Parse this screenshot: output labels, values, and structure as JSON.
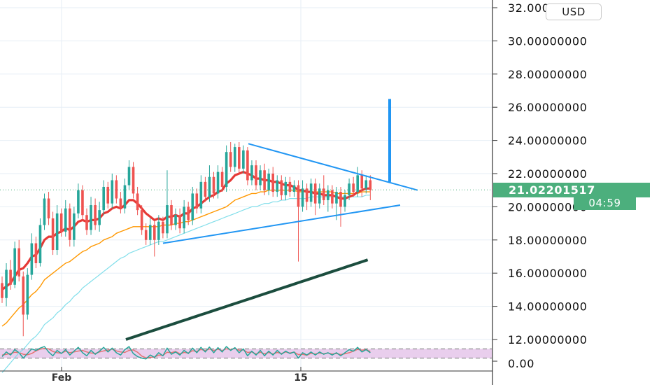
{
  "chart_data": {
    "type": "candlestick",
    "currency": "USD",
    "y_ticks": [
      "32.00000000",
      "30.00000000",
      "28.00000000",
      "26.00000000",
      "24.00000000",
      "22.00000000",
      "20.00000000",
      "18.00000000",
      "16.00000000",
      "14.00000000",
      "12.00000000"
    ],
    "x_ticks": [
      "Feb",
      "15"
    ],
    "ylim": [
      11,
      33
    ],
    "last_price": "21.02201517",
    "countdown": "04:59",
    "indicator": {
      "name": "stochastic",
      "label": "0.00",
      "band": [
        20,
        80
      ]
    },
    "colors": {
      "up": "#26a69a",
      "down": "#ef5350",
      "ema_fast": "#e53935",
      "ema_mid": "#ff9800",
      "ema_slow": "#80deea",
      "ema_long": "#1b4d3e",
      "trendline": "#2196f3",
      "last_price": "#4caf7d",
      "stoch_band": "#e1bee7"
    },
    "candles": [
      [
        15.4,
        14.5,
        15.8,
        14.2
      ],
      [
        14.5,
        16.2,
        16.6,
        14.0
      ],
      [
        16.2,
        15.3,
        16.8,
        15.0
      ],
      [
        15.3,
        17.5,
        17.9,
        15.1
      ],
      [
        17.5,
        15.8,
        18.0,
        15.5
      ],
      [
        15.8,
        13.5,
        16.1,
        12.2
      ],
      [
        13.5,
        15.9,
        16.3,
        13.2
      ],
      [
        15.9,
        17.8,
        18.4,
        15.6
      ],
      [
        17.8,
        16.6,
        18.2,
        16.3
      ],
      [
        16.6,
        18.9,
        19.3,
        16.4
      ],
      [
        18.9,
        20.5,
        20.8,
        18.6
      ],
      [
        20.5,
        19.3,
        20.9,
        18.9
      ],
      [
        19.3,
        17.4,
        19.7,
        17.1
      ],
      [
        17.4,
        19.6,
        20.1,
        17.1
      ],
      [
        19.6,
        18.5,
        19.9,
        18.2
      ],
      [
        18.5,
        19.9,
        20.4,
        18.2
      ],
      [
        19.9,
        18.0,
        20.2,
        17.6
      ],
      [
        18.0,
        19.6,
        20.0,
        17.6
      ],
      [
        19.6,
        21.0,
        21.4,
        19.3
      ],
      [
        21.0,
        19.5,
        21.3,
        19.2
      ],
      [
        19.5,
        18.6,
        19.9,
        18.3
      ],
      [
        18.6,
        20.1,
        20.6,
        18.3
      ],
      [
        20.1,
        18.9,
        20.5,
        18.6
      ],
      [
        18.9,
        19.8,
        20.3,
        18.5
      ],
      [
        19.8,
        21.2,
        21.6,
        19.5
      ],
      [
        21.2,
        20.2,
        21.5,
        19.9
      ],
      [
        20.2,
        21.6,
        22.0,
        19.9
      ],
      [
        21.6,
        20.5,
        21.9,
        20.2
      ],
      [
        20.5,
        19.9,
        20.9,
        19.6
      ],
      [
        19.9,
        21.3,
        21.7,
        19.6
      ],
      [
        21.3,
        22.4,
        22.8,
        21.0
      ],
      [
        22.4,
        20.8,
        22.7,
        20.5
      ],
      [
        20.8,
        19.8,
        21.2,
        19.5
      ],
      [
        19.8,
        18.6,
        20.1,
        18.3
      ],
      [
        18.6,
        18.0,
        19.0,
        17.7
      ],
      [
        18.0,
        18.9,
        19.3,
        17.7
      ],
      [
        18.9,
        18.0,
        19.2,
        17.0
      ],
      [
        18.0,
        19.1,
        19.5,
        17.7
      ],
      [
        19.1,
        18.4,
        19.4,
        18.1
      ],
      [
        18.4,
        20.1,
        22.2,
        18.1
      ],
      [
        20.1,
        18.9,
        20.4,
        18.6
      ],
      [
        18.9,
        19.5,
        19.9,
        18.6
      ],
      [
        19.5,
        18.7,
        19.9,
        18.4
      ],
      [
        18.7,
        20.0,
        20.4,
        18.4
      ],
      [
        20.0,
        19.2,
        20.3,
        18.9
      ],
      [
        19.2,
        20.8,
        21.2,
        18.9
      ],
      [
        20.8,
        19.9,
        21.1,
        19.6
      ],
      [
        19.9,
        21.5,
        21.9,
        19.6
      ],
      [
        21.5,
        20.6,
        21.8,
        20.3
      ],
      [
        20.6,
        21.8,
        22.5,
        20.3
      ],
      [
        21.8,
        20.8,
        22.1,
        20.5
      ],
      [
        20.8,
        22.1,
        22.5,
        20.5
      ],
      [
        22.1,
        21.2,
        22.4,
        20.9
      ],
      [
        21.2,
        23.3,
        23.7,
        20.9
      ],
      [
        23.3,
        22.4,
        23.9,
        22.1
      ],
      [
        22.4,
        23.6,
        23.8,
        22.1
      ],
      [
        23.6,
        22.3,
        23.9,
        22.0
      ],
      [
        22.3,
        23.4,
        23.7,
        22.0
      ],
      [
        23.4,
        21.6,
        23.6,
        21.3
      ],
      [
        21.6,
        22.5,
        22.8,
        21.3
      ],
      [
        22.5,
        21.3,
        22.8,
        21.0
      ],
      [
        21.3,
        22.2,
        22.5,
        21.0
      ],
      [
        22.2,
        21.0,
        22.6,
        20.7
      ],
      [
        21.0,
        22.0,
        22.3,
        20.7
      ],
      [
        22.0,
        20.9,
        22.4,
        20.6
      ],
      [
        20.9,
        21.6,
        21.9,
        20.6
      ],
      [
        21.6,
        20.7,
        21.9,
        20.4
      ],
      [
        20.7,
        21.5,
        21.8,
        20.4
      ],
      [
        21.5,
        20.9,
        21.8,
        20.6
      ],
      [
        20.9,
        21.3,
        21.6,
        20.6
      ],
      [
        21.3,
        20.0,
        21.6,
        16.7
      ],
      [
        20.0,
        21.1,
        21.6,
        19.7
      ],
      [
        21.1,
        20.3,
        21.4,
        19.8
      ],
      [
        20.3,
        21.4,
        21.7,
        20.0
      ],
      [
        21.4,
        20.2,
        21.7,
        19.5
      ],
      [
        20.2,
        21.1,
        21.4,
        19.9
      ],
      [
        21.1,
        20.4,
        21.9,
        20.1
      ],
      [
        20.4,
        21.0,
        21.3,
        19.7
      ],
      [
        21.0,
        20.2,
        21.3,
        19.9
      ],
      [
        20.2,
        20.9,
        21.2,
        19.2
      ],
      [
        20.9,
        20.0,
        21.2,
        18.8
      ],
      [
        20.0,
        20.7,
        21.0,
        19.7
      ],
      [
        20.7,
        21.4,
        21.7,
        20.4
      ],
      [
        21.4,
        20.9,
        21.8,
        20.6
      ],
      [
        20.9,
        21.9,
        22.4,
        20.6
      ],
      [
        21.9,
        21.1,
        22.2,
        20.6
      ],
      [
        21.1,
        21.6,
        21.9,
        20.8
      ],
      [
        21.6,
        21.0,
        21.9,
        20.4
      ]
    ],
    "ema_fast": [
      15.0,
      15.2,
      15.4,
      15.8,
      16.2,
      16.3,
      16.6,
      17.0,
      17.1,
      17.5,
      18.0,
      18.2,
      18.2,
      18.4,
      18.5,
      18.7,
      18.6,
      18.8,
      19.1,
      19.2,
      19.1,
      19.2,
      19.2,
      19.3,
      19.6,
      19.7,
      19.9,
      20.0,
      19.9,
      20.1,
      20.4,
      20.4,
      20.2,
      19.9,
      19.6,
      19.4,
      19.2,
      19.3,
      19.2,
      19.4,
      19.4,
      19.5,
      19.4,
      19.6,
      19.6,
      19.9,
      20.0,
      20.2,
      20.4,
      20.6,
      20.7,
      20.9,
      21.0,
      21.4,
      21.6,
      21.9,
      22.0,
      22.1,
      22.0,
      21.9,
      21.7,
      21.7,
      21.6,
      21.6,
      21.5,
      21.5,
      21.4,
      21.3,
      21.3,
      21.2,
      21.0,
      21.0,
      20.9,
      20.9,
      20.8,
      20.8,
      20.7,
      20.7,
      20.7,
      20.6,
      20.5,
      20.5,
      20.6,
      20.7,
      20.9,
      21.0,
      21.1,
      21.1
    ],
    "ema_mid": [
      12.8,
      13.0,
      13.3,
      13.6,
      13.9,
      14.1,
      14.4,
      14.7,
      14.9,
      15.2,
      15.6,
      15.8,
      16.0,
      16.2,
      16.4,
      16.6,
      16.7,
      16.9,
      17.1,
      17.3,
      17.4,
      17.6,
      17.7,
      17.8,
      18.0,
      18.1,
      18.2,
      18.4,
      18.5,
      18.6,
      18.7,
      18.8,
      18.8,
      18.8,
      18.8,
      18.8,
      18.8,
      18.8,
      18.9,
      18.9,
      18.9,
      19.0,
      19.0,
      19.1,
      19.1,
      19.2,
      19.3,
      19.4,
      19.5,
      19.6,
      19.7,
      19.8,
      19.9,
      20.0,
      20.2,
      20.4,
      20.5,
      20.6,
      20.7,
      20.8,
      20.8,
      20.9,
      20.9,
      21.0,
      21.0,
      21.0,
      21.0,
      21.0,
      21.0,
      21.0,
      20.9,
      20.9,
      20.9,
      20.9,
      20.9,
      20.9,
      20.9,
      20.9,
      20.9,
      20.8,
      20.8,
      20.8,
      20.8,
      20.8,
      20.8,
      20.9,
      20.9,
      20.9
    ],
    "ema_slow": [
      10.0,
      10.3,
      10.6,
      10.9,
      11.2,
      11.4,
      11.7,
      12.0,
      12.2,
      12.5,
      12.9,
      13.1,
      13.3,
      13.6,
      13.8,
      14.1,
      14.3,
      14.6,
      14.8,
      15.1,
      15.3,
      15.5,
      15.7,
      15.9,
      16.1,
      16.3,
      16.5,
      16.7,
      16.9,
      17.0,
      17.2,
      17.3,
      17.4,
      17.5,
      17.6,
      17.7,
      17.8,
      17.9,
      17.9,
      18.0,
      18.1,
      18.2,
      18.3,
      18.4,
      18.5,
      18.6,
      18.7,
      18.8,
      18.9,
      19.0,
      19.1,
      19.2,
      19.3,
      19.4,
      19.5,
      19.6,
      19.7,
      19.8,
      19.9,
      20.0,
      20.0,
      20.1,
      20.2,
      20.2,
      20.3,
      20.3,
      20.4,
      20.4,
      20.5,
      20.5,
      20.5,
      20.5,
      20.5,
      20.6,
      20.6,
      20.6,
      20.6,
      20.6,
      20.6,
      20.6,
      20.6,
      20.6,
      20.6,
      20.6,
      20.6,
      20.6,
      20.7,
      20.7
    ],
    "ema_long": [
      12.0,
      12.1,
      12.2,
      12.3,
      12.4,
      12.5,
      12.6,
      12.7,
      12.8,
      12.9,
      13.0,
      13.1,
      13.2,
      13.3,
      13.4,
      13.5,
      13.6,
      13.7,
      13.8,
      13.9,
      14.0,
      14.1,
      14.2,
      14.3,
      14.4,
      14.5,
      14.6,
      14.7,
      14.8,
      14.9,
      15.0,
      15.1,
      15.2,
      15.3,
      15.4,
      15.5,
      15.6,
      15.7,
      15.8,
      15.9,
      16.0,
      16.1,
      16.2,
      16.3,
      16.4,
      16.5,
      16.6,
      16.7,
      16.8
    ],
    "stoch_k": [
      30,
      60,
      40,
      75,
      55,
      20,
      50,
      80,
      70,
      85,
      95,
      60,
      35,
      70,
      50,
      75,
      40,
      65,
      90,
      55,
      35,
      70,
      45,
      65,
      90,
      60,
      85,
      55,
      40,
      75,
      95,
      50,
      30,
      20,
      15,
      40,
      25,
      55,
      35,
      85,
      45,
      60,
      40,
      70,
      50,
      85,
      55,
      90,
      60,
      92,
      55,
      88,
      60,
      95,
      70,
      88,
      55,
      80,
      35,
      65,
      40,
      70,
      35,
      65,
      40,
      70,
      45,
      65,
      50,
      60,
      20,
      55,
      40,
      60,
      40,
      60,
      45,
      55,
      40,
      55,
      35,
      55,
      75,
      65,
      90,
      60,
      75,
      55
    ],
    "stoch_d": [
      40,
      45,
      50,
      58,
      56,
      45,
      42,
      50,
      67,
      78,
      83,
      80,
      63,
      55,
      52,
      65,
      55,
      60,
      66,
      70,
      60,
      53,
      50,
      60,
      67,
      72,
      78,
      67,
      60,
      57,
      70,
      73,
      58,
      33,
      22,
      25,
      27,
      40,
      38,
      58,
      55,
      63,
      48,
      57,
      53,
      68,
      63,
      77,
      68,
      80,
      69,
      78,
      68,
      81,
      75,
      84,
      71,
      74,
      57,
      60,
      47,
      58,
      48,
      57,
      47,
      57,
      50,
      60,
      53,
      58,
      43,
      45,
      38,
      52,
      47,
      53,
      48,
      53,
      47,
      50,
      43,
      48,
      55,
      65,
      77,
      72,
      75,
      63
    ]
  }
}
